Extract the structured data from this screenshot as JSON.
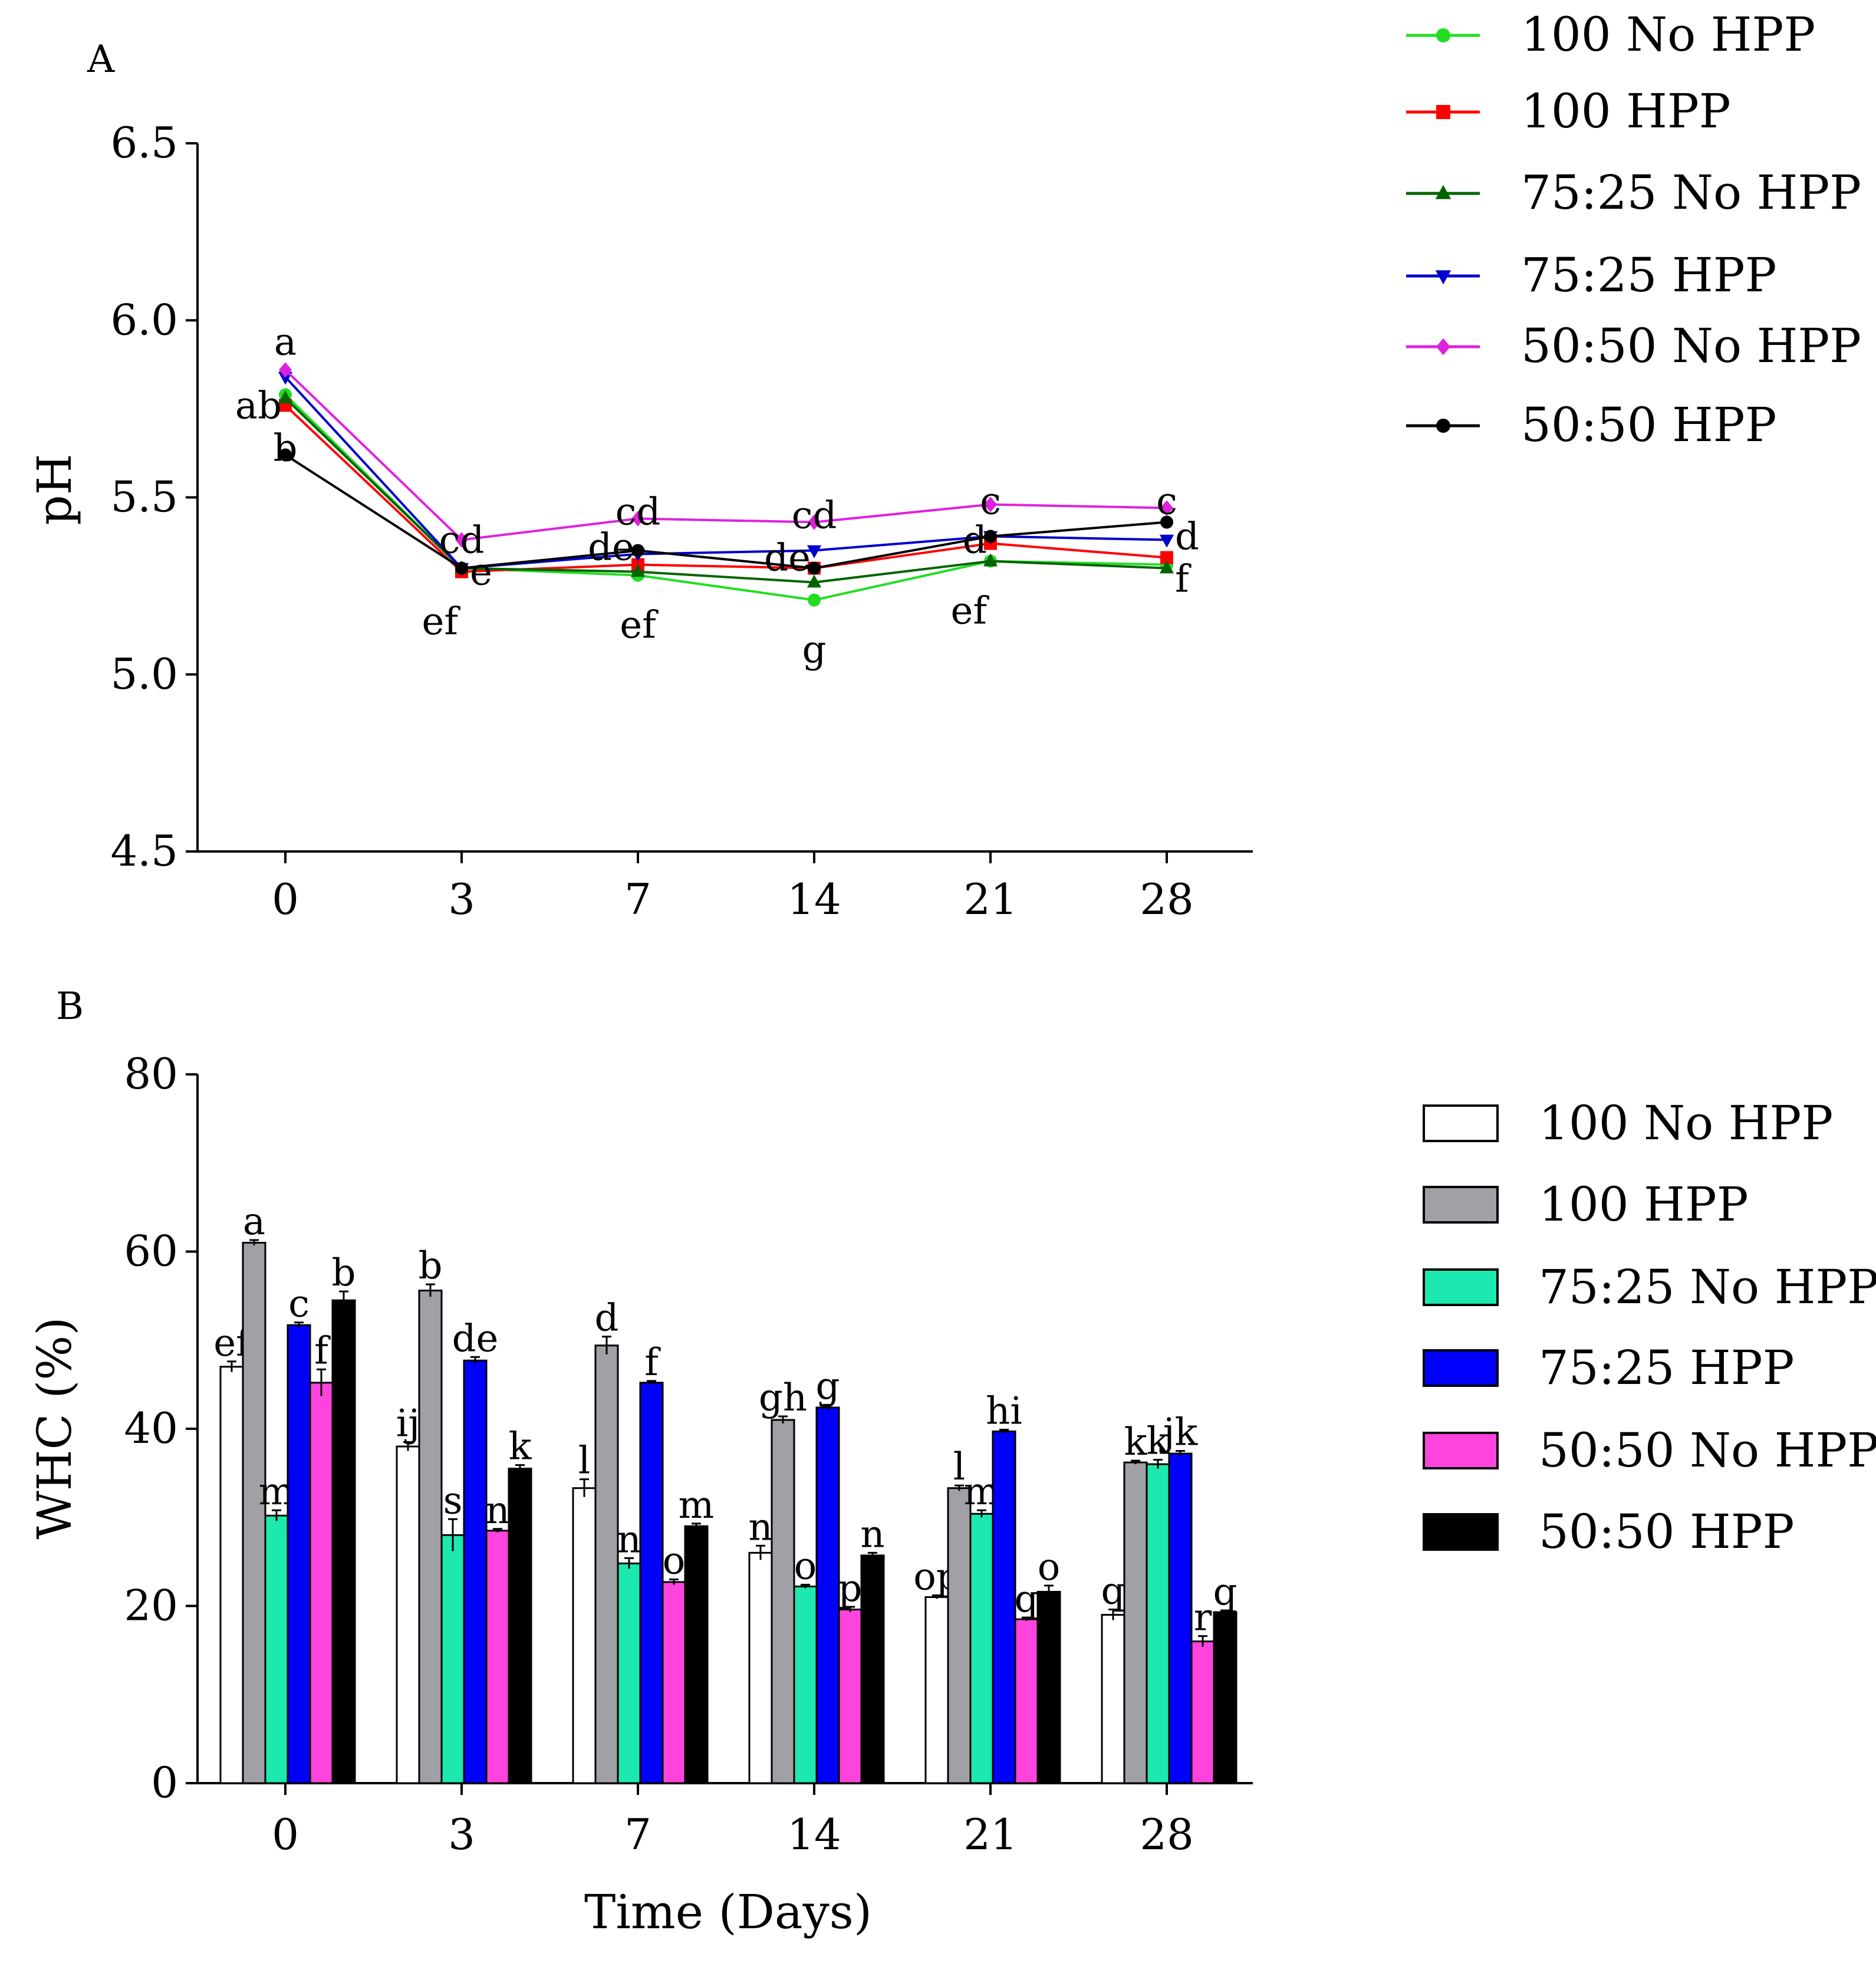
{
  "chart_data": [
    {
      "panel": "A",
      "type": "line",
      "title": "",
      "xlabel": "",
      "ylabel": "pH",
      "ylim": [
        4.5,
        6.5
      ],
      "yticks": [
        "4.5",
        "5.0",
        "5.5",
        "6.0",
        "6.5"
      ],
      "categories": [
        "0",
        "3",
        "7",
        "14",
        "21",
        "28"
      ],
      "legend_position": "top-right",
      "series": [
        {
          "name": "100 No HPP",
          "color": "#22dd22",
          "marker": "circle",
          "values": [
            5.79,
            5.3,
            5.28,
            5.21,
            5.32,
            5.31
          ]
        },
        {
          "name": "100 HPP",
          "color": "#ff0000",
          "marker": "square",
          "values": [
            5.76,
            5.29,
            5.31,
            5.3,
            5.37,
            5.33
          ]
        },
        {
          "name": "75:25 No HPP",
          "color": "#006400",
          "marker": "triangle-up",
          "values": [
            5.78,
            5.3,
            5.29,
            5.26,
            5.32,
            5.3
          ]
        },
        {
          "name": "75:25 HPP",
          "color": "#0000cc",
          "marker": "triangle-down",
          "values": [
            5.84,
            5.3,
            5.34,
            5.35,
            5.39,
            5.38
          ]
        },
        {
          "name": "50:50 No HPP",
          "color": "#dd22dd",
          "marker": "diamond",
          "values": [
            5.86,
            5.38,
            5.44,
            5.43,
            5.48,
            5.47
          ]
        },
        {
          "name": "50:50 HPP",
          "color": "#000000",
          "marker": "circle",
          "values": [
            5.62,
            5.3,
            5.35,
            5.3,
            5.39,
            5.43
          ]
        }
      ],
      "annotations": [
        {
          "category": "0",
          "y": 5.94,
          "text": "a",
          "align": "middle"
        },
        {
          "category": "0",
          "y": 5.76,
          "text": "ab",
          "align": "end"
        },
        {
          "category": "0",
          "y": 5.64,
          "text": "b",
          "align": "middle"
        },
        {
          "category": "3",
          "y": 5.38,
          "text": "cd",
          "align": "middle"
        },
        {
          "category": "3",
          "y": 5.29,
          "text": "e",
          "align": "start"
        },
        {
          "category": "3",
          "y": 5.15,
          "text": "ef",
          "align": "end"
        },
        {
          "category": "7",
          "y": 5.46,
          "text": "cd",
          "align": "middle"
        },
        {
          "category": "7",
          "y": 5.36,
          "text": "de",
          "align": "end"
        },
        {
          "category": "7",
          "y": 5.14,
          "text": "ef",
          "align": "middle"
        },
        {
          "category": "14",
          "y": 5.45,
          "text": "cd",
          "align": "middle"
        },
        {
          "category": "14",
          "y": 5.33,
          "text": "de",
          "align": "end"
        },
        {
          "category": "14",
          "y": 5.07,
          "text": "g",
          "align": "middle"
        },
        {
          "category": "21",
          "y": 5.49,
          "text": "c",
          "align": "middle"
        },
        {
          "category": "21",
          "y": 5.38,
          "text": "d",
          "align": "end"
        },
        {
          "category": "21",
          "y": 5.18,
          "text": "ef",
          "align": "end"
        },
        {
          "category": "28",
          "y": 5.49,
          "text": "c",
          "align": "middle"
        },
        {
          "category": "28",
          "y": 5.39,
          "text": "d",
          "align": "start"
        },
        {
          "category": "28",
          "y": 5.27,
          "text": "f",
          "align": "start"
        }
      ]
    },
    {
      "panel": "B",
      "type": "bar",
      "title": "",
      "xlabel": "Time (Days)",
      "ylabel": "WHC (%)",
      "ylim": [
        0,
        80
      ],
      "yticks": [
        "0",
        "20",
        "40",
        "60",
        "80"
      ],
      "categories": [
        "0",
        "3",
        "7",
        "14",
        "21",
        "28"
      ],
      "legend_position": "right",
      "series": [
        {
          "name": "100 No HPP",
          "color": "#ffffff",
          "values": [
            47,
            38,
            33.3,
            26,
            21,
            19
          ],
          "errors": [
            0.6,
            0.5,
            1.0,
            0.8,
            0.2,
            0.6
          ],
          "letters": [
            "ef",
            "ij",
            "l",
            "n",
            "op",
            "q"
          ]
        },
        {
          "name": "100 HPP",
          "color": "#a0a0a6",
          "values": [
            61,
            55.6,
            49.4,
            41,
            33.3,
            36.2
          ],
          "errors": [
            0.3,
            0.7,
            1.0,
            0.4,
            0.3,
            0.2
          ],
          "letters": [
            "a",
            "b",
            "d",
            "gh",
            "l",
            "k"
          ]
        },
        {
          "name": "75:25 No HPP",
          "color": "#1de8b0",
          "values": [
            30.2,
            28,
            24.8,
            22.2,
            30.4,
            36
          ],
          "errors": [
            0.6,
            1.8,
            0.6,
            0.2,
            0.4,
            0.5
          ],
          "letters": [
            "m",
            "s",
            "n",
            "o",
            "m",
            "k"
          ]
        },
        {
          "name": "75:25 HPP",
          "color": "#0000ff",
          "values": [
            51.7,
            47.7,
            45.2,
            42.4,
            39.7,
            37.2
          ],
          "errors": [
            0.3,
            0.4,
            0.2,
            0.3,
            0.2,
            0.3
          ],
          "letters": [
            "c",
            "de",
            "f",
            "g",
            "hi",
            "jk"
          ]
        },
        {
          "name": "50:50 No HPP",
          "color": "#ff44dd",
          "values": [
            45.2,
            28.5,
            22.7,
            19.6,
            18.5,
            16
          ],
          "errors": [
            1.5,
            0.2,
            0.3,
            0.3,
            0.2,
            0.6
          ],
          "letters": [
            "f",
            "n",
            "o",
            "p",
            "q",
            "r"
          ]
        },
        {
          "name": "50:50 HPP",
          "color": "#000000",
          "values": [
            54.5,
            35.5,
            29,
            25.7,
            21.6,
            19.3
          ],
          "errors": [
            1.0,
            0.4,
            0.3,
            0.3,
            0.7,
            0.2
          ],
          "letters": [
            "b",
            "k",
            "m",
            "n",
            "o",
            "q"
          ]
        }
      ]
    }
  ]
}
